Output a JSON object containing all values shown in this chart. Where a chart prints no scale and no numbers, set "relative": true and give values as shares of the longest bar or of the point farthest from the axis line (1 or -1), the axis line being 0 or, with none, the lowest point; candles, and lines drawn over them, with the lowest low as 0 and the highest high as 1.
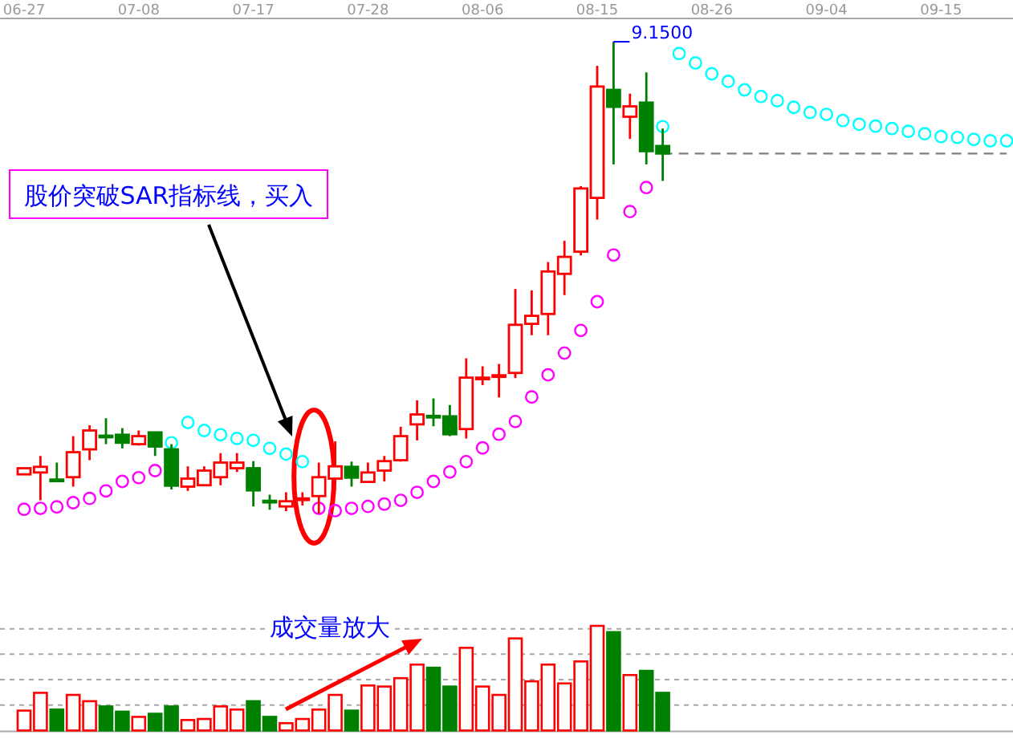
{
  "chart_data": [
    {
      "type": "candlestick",
      "relative": true,
      "tick_labels": "x",
      "categories": [
        "06-27",
        null,
        null,
        null,
        null,
        null,
        null,
        "07-08",
        null,
        null,
        null,
        null,
        null,
        null,
        "07-17",
        null,
        null,
        null,
        null,
        null,
        null,
        "07-28",
        null,
        null,
        null,
        null,
        null,
        null,
        "08-06",
        null,
        null,
        null,
        null,
        null,
        null,
        "08-15",
        null,
        null,
        null,
        null,
        null,
        null,
        "08-26",
        null,
        null,
        null,
        null,
        null,
        null,
        "09-04",
        null,
        null,
        null,
        null,
        null,
        null,
        "09-15",
        null,
        null,
        null,
        null
      ],
      "ohlc": [
        [
          0.083,
          0.096,
          0.083,
          0.096
        ],
        [
          0.087,
          0.122,
          0.028,
          0.099
        ],
        [
          0.072,
          0.108,
          0.068,
          0.07
        ],
        [
          0.077,
          0.164,
          0.057,
          0.13
        ],
        [
          0.136,
          0.187,
          0.113,
          0.176
        ],
        [
          0.165,
          0.202,
          0.147,
          0.163
        ],
        [
          0.167,
          0.181,
          0.138,
          0.15
        ],
        [
          0.147,
          0.176,
          0.144,
          0.164
        ],
        [
          0.172,
          0.172,
          0.122,
          0.142
        ],
        [
          0.136,
          0.147,
          0.051,
          0.059
        ],
        [
          0.057,
          0.1,
          0.048,
          0.074
        ],
        [
          0.06,
          0.1,
          0.06,
          0.091
        ],
        [
          0.077,
          0.128,
          0.06,
          0.108
        ],
        [
          0.096,
          0.128,
          0.088,
          0.108
        ],
        [
          0.096,
          0.111,
          0.015,
          0.049
        ],
        [
          0.027,
          0.04,
          0.008,
          0.026
        ],
        [
          0.015,
          0.045,
          0.005,
          0.026
        ],
        [
          0.031,
          0.045,
          0.017,
          0.032
        ],
        [
          0.037,
          0.108,
          0,
          0.077
        ],
        [
          0.074,
          0.153,
          0.074,
          0.1
        ],
        [
          0.099,
          0.11,
          0.057,
          0.076
        ],
        [
          0.067,
          0.108,
          0.067,
          0.087
        ],
        [
          0.091,
          0.122,
          0.068,
          0.111
        ],
        [
          0.113,
          0.184,
          0.11,
          0.164
        ],
        [
          0.189,
          0.24,
          0.155,
          0.21
        ],
        [
          0.207,
          0.244,
          0.185,
          0.205
        ],
        [
          0.206,
          0.23,
          0.164,
          0.168
        ],
        [
          0.179,
          0.329,
          0.159,
          0.288
        ],
        [
          0.286,
          0.312,
          0.272,
          0.288
        ],
        [
          0.291,
          0.317,
          0.246,
          0.293
        ],
        [
          0.298,
          0.476,
          0.287,
          0.4
        ],
        [
          0.402,
          0.473,
          0.378,
          0.419
        ],
        [
          0.423,
          0.533,
          0.378,
          0.513
        ],
        [
          0.508,
          0.578,
          0.463,
          0.544
        ],
        [
          0.555,
          0.694,
          0.547,
          0.689
        ],
        [
          0.669,
          0.949,
          0.623,
          0.905
        ],
        [
          0.898,
          1,
          0.74,
          0.862
        ],
        [
          0.841,
          0.89,
          0.794,
          0.863
        ],
        [
          0.871,
          0.935,
          0.74,
          0.768
        ],
        [
          0.779,
          0.816,
          0.705,
          0.763
        ],
        null,
        null,
        null,
        null,
        null,
        null,
        null,
        null,
        null,
        null,
        null,
        null,
        null,
        null,
        null,
        null,
        null,
        null,
        null,
        null,
        null
      ],
      "colors": [
        "#ff0000",
        "#ff0000",
        "#008000",
        "#ff0000",
        "#ff0000",
        "#008000",
        "#008000",
        "#ff0000",
        "#008000",
        "#008000",
        "#ff0000",
        "#ff0000",
        "#ff0000",
        "#ff0000",
        "#008000",
        "#008000",
        "#ff0000",
        "#ff0000",
        "#ff0000",
        "#ff0000",
        "#008000",
        "#ff0000",
        "#ff0000",
        "#ff0000",
        "#ff0000",
        "#008000",
        "#008000",
        "#ff0000",
        "#ff0000",
        "#ff0000",
        "#ff0000",
        "#ff0000",
        "#ff0000",
        "#ff0000",
        "#ff0000",
        "#ff0000",
        "#008000",
        "#ff0000",
        "#008000",
        "#008000",
        null,
        null,
        null,
        null,
        null,
        null,
        null,
        null,
        null,
        null,
        null,
        null,
        null,
        null,
        null,
        null,
        null,
        null,
        null,
        null,
        null
      ],
      "series": [
        {
          "type": "scatter",
          "color": "#ff00ff",
          "marker": "circle",
          "values": [
            0.009,
            0.011,
            0.014,
            0.023,
            0.032,
            0.048,
            0.068,
            0.076,
            0.091,
            null,
            null,
            null,
            null,
            null,
            null,
            null,
            null,
            null,
            0.011,
            0.006,
            0.011,
            0.015,
            0.02,
            0.028,
            0.045,
            0.068,
            0.088,
            0.11,
            0.139,
            0.168,
            0.195,
            0.247,
            0.294,
            0.34,
            0.388,
            0.449,
            0.548,
            0.64,
            0.691,
            null,
            null,
            null,
            null,
            null,
            null,
            null,
            null,
            null,
            null,
            null,
            null,
            null,
            null,
            null,
            null,
            null,
            null,
            null,
            null,
            null,
            null
          ]
        },
        {
          "type": "scatter",
          "color": "#00ffff",
          "marker": "circle",
          "values": [
            null,
            null,
            null,
            null,
            null,
            null,
            null,
            null,
            null,
            0.15,
            0.193,
            0.176,
            0.167,
            0.159,
            0.155,
            0.138,
            0.126,
            0.11,
            null,
            null,
            null,
            null,
            null,
            null,
            null,
            null,
            null,
            null,
            null,
            null,
            null,
            null,
            null,
            null,
            null,
            null,
            null,
            null,
            null,
            0.82,
            0.975,
            0.955,
            0.932,
            0.916,
            0.898,
            0.884,
            0.875,
            0.861,
            0.85,
            0.846,
            0.833,
            0.825,
            0.821,
            0.816,
            0.81,
            0.805,
            0.799,
            0.797,
            0.793,
            0.79,
            0.79
          ]
        },
        {
          "type": "line",
          "color": "#808080",
          "line_style": "dashed",
          "values": [
            null,
            null,
            null,
            null,
            null,
            null,
            null,
            null,
            null,
            null,
            null,
            null,
            null,
            null,
            null,
            null,
            null,
            null,
            null,
            null,
            null,
            null,
            null,
            null,
            null,
            null,
            null,
            null,
            null,
            null,
            null,
            null,
            null,
            null,
            null,
            null,
            null,
            null,
            null,
            0.763,
            0.763,
            0.763,
            0.763,
            0.763,
            0.763,
            0.763,
            0.763,
            0.763,
            0.763,
            0.763,
            0.763,
            0.763,
            0.763,
            0.763,
            0.763,
            0.763,
            0.763,
            0.763,
            0.763,
            0.763,
            0.763
          ]
        }
      ],
      "annotations": [
        "股价突破SAR指标线，买入",
        "9.1500"
      ]
    },
    {
      "type": "bar",
      "relative": true,
      "grid": true,
      "tick_labels": false,
      "categories": [
        null,
        null,
        null,
        null,
        null,
        null,
        null,
        null,
        null,
        null,
        null,
        null,
        null,
        null,
        null,
        null,
        null,
        null,
        null,
        null,
        null,
        null,
        null,
        null,
        null,
        null,
        null,
        null,
        null,
        null,
        null,
        null,
        null,
        null,
        null,
        null,
        null,
        null,
        null,
        null,
        null,
        null,
        null,
        null,
        null,
        null,
        null,
        null,
        null,
        null,
        null,
        null,
        null,
        null,
        null,
        null,
        null,
        null,
        null,
        null,
        null
      ],
      "values": [
        0.19,
        0.36,
        0.2,
        0.34,
        0.28,
        0.23,
        0.18,
        0.13,
        0.16,
        0.23,
        0.1,
        0.11,
        0.23,
        0.2,
        0.28,
        0.13,
        0.07,
        0.11,
        0.2,
        0.34,
        0.19,
        0.43,
        0.42,
        0.5,
        0.63,
        0.6,
        0.42,
        0.79,
        0.42,
        0.34,
        0.88,
        0.47,
        0.63,
        0.45,
        0.66,
        1,
        0.94,
        0.53,
        0.57,
        0.36,
        null,
        null,
        null,
        null,
        null,
        null,
        null,
        null,
        null,
        null,
        null,
        null,
        null,
        null,
        null,
        null,
        null,
        null,
        null,
        null,
        null
      ],
      "colors": [
        "#ff0000",
        "#ff0000",
        "#008000",
        "#ff0000",
        "#ff0000",
        "#008000",
        "#008000",
        "#ff0000",
        "#008000",
        "#008000",
        "#ff0000",
        "#ff0000",
        "#ff0000",
        "#ff0000",
        "#008000",
        "#008000",
        "#ff0000",
        "#ff0000",
        "#ff0000",
        "#ff0000",
        "#008000",
        "#ff0000",
        "#ff0000",
        "#ff0000",
        "#ff0000",
        "#008000",
        "#008000",
        "#ff0000",
        "#ff0000",
        "#ff0000",
        "#ff0000",
        "#ff0000",
        "#ff0000",
        "#ff0000",
        "#ff0000",
        "#ff0000",
        "#008000",
        "#ff0000",
        "#008000",
        "#008000",
        null,
        null,
        null,
        null,
        null,
        null,
        null,
        null,
        null,
        null,
        null,
        null,
        null,
        null,
        null,
        null,
        null,
        null,
        null,
        null,
        null
      ],
      "annotations": [
        "成交量放大"
      ]
    }
  ]
}
